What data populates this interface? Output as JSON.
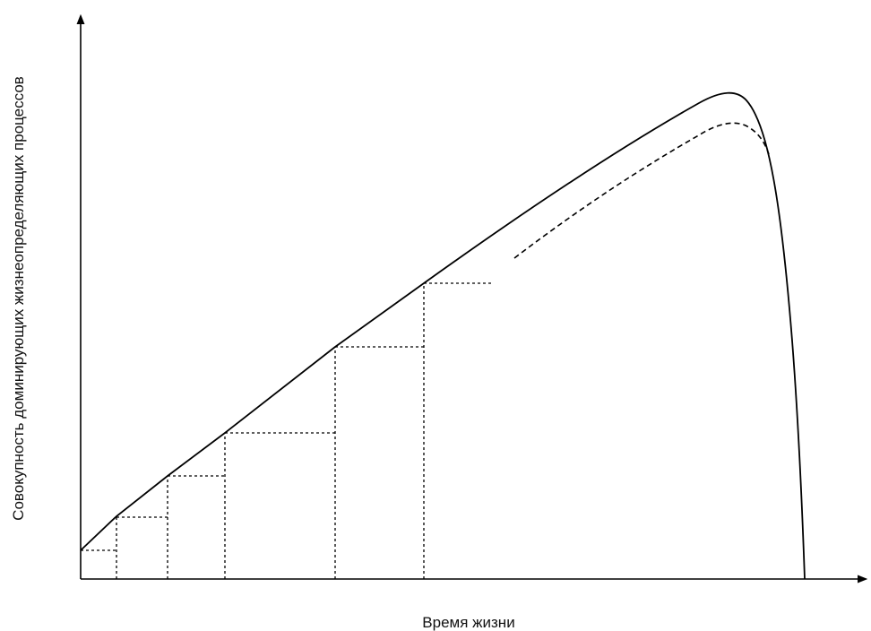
{
  "figure": {
    "xlabel": "Время жизни",
    "ylabel": "Совокупность доминирующих жизнеопределяющих процессов"
  },
  "colors": {
    "ink": "#000000"
  }
}
